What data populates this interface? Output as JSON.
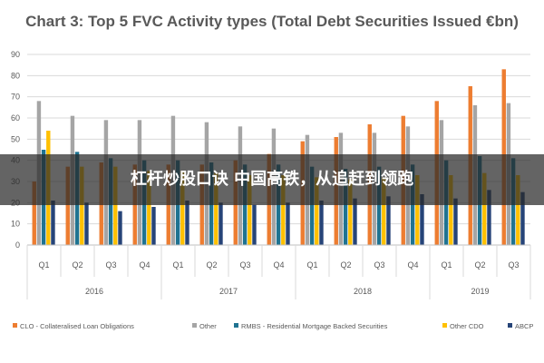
{
  "chart_data": {
    "type": "bar",
    "title": "Chart 3: Top 5 FVC Activity types (Total Debt Securities Issued €bn)",
    "ylim": [
      0,
      90
    ],
    "yticks": [
      0,
      10,
      20,
      30,
      40,
      50,
      60,
      70,
      80,
      90
    ],
    "grid": true,
    "legend_position": "bottom",
    "categories": [
      "Q1",
      "Q2",
      "Q3",
      "Q4",
      "Q1",
      "Q2",
      "Q3",
      "Q4",
      "Q1",
      "Q2",
      "Q3",
      "Q4",
      "Q1",
      "Q2",
      "Q3"
    ],
    "year_groups": [
      {
        "label": "2016",
        "count": 4
      },
      {
        "label": "2017",
        "count": 4
      },
      {
        "label": "2018",
        "count": 4
      },
      {
        "label": "2019",
        "count": 3
      }
    ],
    "series": [
      {
        "name": "CLO - Collateralised Loan Obligations",
        "color": "#ED7D31",
        "values": [
          30,
          37,
          39,
          38,
          38,
          38,
          40,
          43,
          49,
          51,
          57,
          61,
          68,
          75,
          83
        ]
      },
      {
        "name": "Other",
        "color": "#A5A5A5",
        "values": [
          68,
          61,
          59,
          59,
          61,
          58,
          56,
          55,
          52,
          53,
          53,
          56,
          59,
          66,
          67
        ]
      },
      {
        "name": "RMBS - Residential Mortgage Backed Securities",
        "color": "#1F7391",
        "values": [
          45,
          44,
          41,
          40,
          40,
          39,
          38,
          38,
          37,
          36,
          37,
          38,
          40,
          42,
          41
        ]
      },
      {
        "name": "Other CDO",
        "color": "#FFC000",
        "values": [
          54,
          37,
          37,
          35,
          35,
          34,
          33,
          33,
          32,
          31,
          32,
          33,
          33,
          34,
          33
        ]
      },
      {
        "name": "ABCP",
        "color": "#264478",
        "values": [
          21,
          20,
          16,
          18,
          21,
          20,
          19,
          20,
          21,
          22,
          23,
          24,
          22,
          26,
          25
        ]
      }
    ]
  },
  "overlay": {
    "banner_text": "杠杆炒股口诀 中国高铁，从追赶到领跑"
  }
}
